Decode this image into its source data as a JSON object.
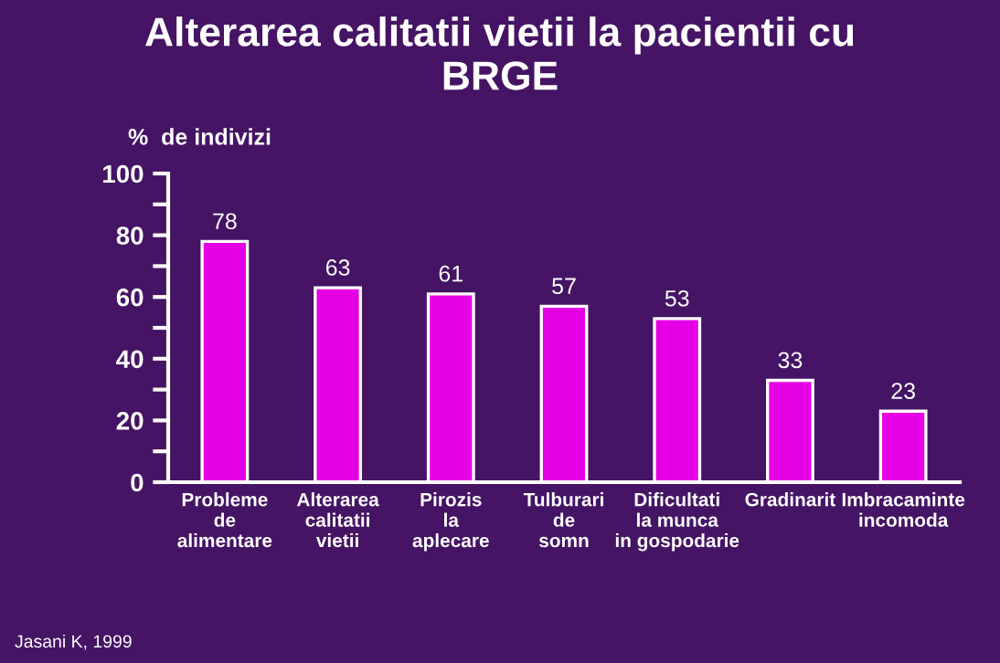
{
  "chart_data": {
    "type": "bar",
    "title": "Alterarea calitatii vietii la pacientii cu\nBRGE",
    "ylabel": "%  de indivizi",
    "categories": [
      "Probleme\nde\nalimentare",
      "Alterarea\ncalitatii\nvietii",
      "Pirozis\nla\naplecare",
      "Tulburari\nde\nsomn",
      "Dificultati\nla munca\nin gospodarie",
      "Gradinarit",
      "Imbracaminte\nincomoda"
    ],
    "values": [
      78,
      63,
      61,
      57,
      53,
      33,
      23
    ],
    "color": "#e600e6",
    "data_labels": true,
    "grid": false,
    "ylim": [
      0,
      100
    ],
    "yticks": [
      0,
      {
        "value": 10,
        "label": null
      },
      20,
      {
        "value": 30,
        "label": null
      },
      40,
      {
        "value": 50,
        "label": null
      },
      60,
      {
        "value": 70,
        "label": null
      },
      80,
      {
        "value": 90,
        "label": null
      },
      100
    ],
    "annotations": [
      "Jasani K, 1999"
    ]
  }
}
